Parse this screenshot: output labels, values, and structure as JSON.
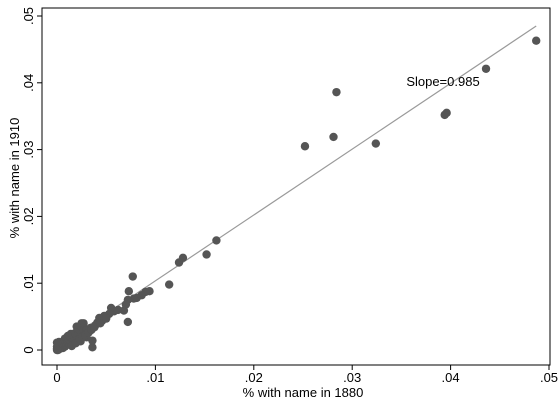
{
  "chart_data": {
    "type": "scatter",
    "title": "",
    "xlabel": "% with name in 1880",
    "ylabel": "% with name in 1910",
    "xlim": [
      0,
      0.05
    ],
    "ylim": [
      0,
      0.05
    ],
    "x_ticks": [
      {
        "value": 0,
        "label": "0"
      },
      {
        "value": 0.01,
        "label": ".01"
      },
      {
        "value": 0.02,
        "label": ".02"
      },
      {
        "value": 0.03,
        "label": ".03"
      },
      {
        "value": 0.04,
        "label": ".04"
      },
      {
        "value": 0.05,
        "label": ".05"
      }
    ],
    "y_ticks": [
      {
        "value": 0,
        "label": "0"
      },
      {
        "value": 0.01,
        "label": ".01"
      },
      {
        "value": 0.02,
        "label": ".02"
      },
      {
        "value": 0.03,
        "label": ".03"
      },
      {
        "value": 0.04,
        "label": ".04"
      },
      {
        "value": 0.05,
        "label": ".05"
      }
    ],
    "grid": false,
    "legend": "none",
    "fit_line": {
      "slope": 0.985,
      "x0": 0,
      "y0": 0.0005,
      "x1": 0.0487,
      "y1": 0.0485
    },
    "annotation": {
      "text": "Slope=0.985",
      "x": 0.0355,
      "y": 0.0395
    },
    "colors": {
      "points": "#555555",
      "fit_line": "#9a9a9a",
      "axes": "#000000"
    },
    "points": [
      [
        0.0487,
        0.0463
      ],
      [
        0.0436,
        0.0421
      ],
      [
        0.0396,
        0.0355
      ],
      [
        0.0394,
        0.0352
      ],
      [
        0.0324,
        0.0309
      ],
      [
        0.0284,
        0.0386
      ],
      [
        0.0281,
        0.0319
      ],
      [
        0.0252,
        0.0305
      ],
      [
        0.0162,
        0.0164
      ],
      [
        0.0152,
        0.0143
      ],
      [
        0.0128,
        0.0138
      ],
      [
        0.0124,
        0.0131
      ],
      [
        0.0114,
        0.0098
      ],
      [
        0.0094,
        0.0088
      ],
      [
        0.009,
        0.0087
      ],
      [
        0.0086,
        0.0082
      ],
      [
        0.0081,
        0.0078
      ],
      [
        0.0078,
        0.0077
      ],
      [
        0.0077,
        0.011
      ],
      [
        0.0073,
        0.0088
      ],
      [
        0.0072,
        0.0075
      ],
      [
        0.0072,
        0.0042
      ],
      [
        0.0068,
        0.0059
      ],
      [
        0.0058,
        0.0058
      ],
      [
        0.0055,
        0.0063
      ],
      [
        0.0053,
        0.0054
      ],
      [
        0.0048,
        0.0051
      ],
      [
        0.0046,
        0.0044
      ],
      [
        0.0043,
        0.0048
      ],
      [
        0.0041,
        0.0041
      ],
      [
        0.0039,
        0.0037
      ],
      [
        0.0036,
        0.0004
      ],
      [
        0.0036,
        0.0014
      ],
      [
        0.0034,
        0.0033
      ],
      [
        0.0033,
        0.0028
      ],
      [
        0.0031,
        0.003
      ],
      [
        0.003,
        0.0019
      ],
      [
        0.0029,
        0.0025
      ],
      [
        0.0027,
        0.0033
      ],
      [
        0.0027,
        0.004
      ],
      [
        0.0025,
        0.0024
      ],
      [
        0.0025,
        0.004
      ],
      [
        0.0024,
        0.0013
      ],
      [
        0.0022,
        0.003
      ],
      [
        0.0021,
        0.0021
      ],
      [
        0.002,
        0.0035
      ],
      [
        0.0019,
        0.0026
      ],
      [
        0.0018,
        0.0016
      ],
      [
        0.0017,
        0.0022
      ],
      [
        0.0016,
        0.0012
      ],
      [
        0.0015,
        0.0019
      ],
      [
        0.0014,
        0.0024
      ],
      [
        0.0013,
        0.001
      ],
      [
        0.0012,
        0.0016
      ],
      [
        0.0011,
        0.0021
      ],
      [
        0.001,
        0.0008
      ],
      [
        0.001,
        0.0014
      ],
      [
        0.0009,
        0.0011
      ],
      [
        0.0008,
        0.0017
      ],
      [
        0.0008,
        0.0005
      ],
      [
        0.0007,
        0.0009
      ],
      [
        0.0007,
        0.0013
      ],
      [
        0.0006,
        0.0003
      ],
      [
        0.0006,
        0.0008
      ],
      [
        0.0005,
        0.0011
      ],
      [
        0.0005,
        0.0004
      ],
      [
        0.0004,
        0.0006
      ],
      [
        0.0004,
        0.001
      ],
      [
        0.0003,
        0.0002
      ],
      [
        0.0003,
        0.0007
      ],
      [
        0.0002,
        0.0004
      ],
      [
        0.0002,
        0.0012
      ],
      [
        0.0002,
        0.0001
      ],
      [
        0.0001,
        0.0003
      ],
      [
        0.0001,
        0.0008
      ],
      [
        0.0001,
        0.0
      ],
      [
        0.0,
        0.0002
      ],
      [
        0.0,
        0.0005
      ],
      [
        0.0,
        0.0011
      ],
      [
        0.0,
        0.0
      ],
      [
        0.0015,
        0.0006
      ],
      [
        0.0019,
        0.001
      ],
      [
        0.0023,
        0.0017
      ],
      [
        0.0026,
        0.002
      ],
      [
        0.0029,
        0.0022
      ],
      [
        0.0032,
        0.0026
      ],
      [
        0.0035,
        0.003
      ],
      [
        0.0038,
        0.0034
      ],
      [
        0.0044,
        0.004
      ],
      [
        0.005,
        0.0047
      ],
      [
        0.0062,
        0.006
      ],
      [
        0.007,
        0.0068
      ]
    ]
  }
}
